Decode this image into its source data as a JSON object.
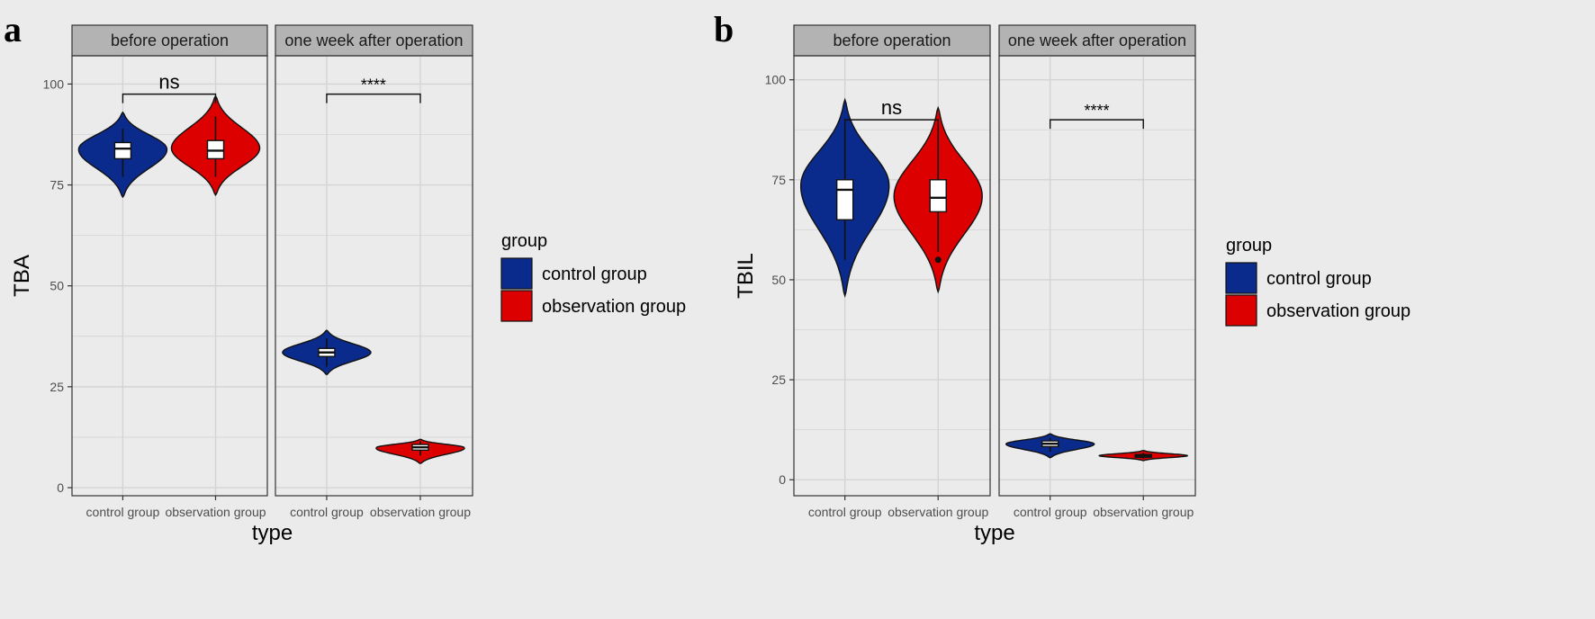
{
  "colors": {
    "control": "#0a2a8c",
    "observation": "#dd0000",
    "background": "#ebebeb",
    "panel": "#ebebeb",
    "strip": "#b3b3b3",
    "grid": "#d4d4d4"
  },
  "chart_data": [
    {
      "type": "violin",
      "panel_label": "a",
      "ylabel": "TBA",
      "xlabel": "type",
      "ylim": [
        -2,
        107
      ],
      "yticks": [
        0,
        25,
        50,
        75,
        100
      ],
      "categories": [
        "control group",
        "observation group"
      ],
      "legend": {
        "title": "group",
        "entries": [
          "control group",
          "observation group"
        ],
        "placement": "right"
      },
      "facets": [
        {
          "title": "before operation",
          "significance": "ns",
          "bracket_y": 97.5,
          "groups": [
            {
              "name": "control group",
              "min": 72,
              "max": 93,
              "mode": 84,
              "q1": 81.5,
              "median": 84,
              "q3": 85.5,
              "whisker_low": 77,
              "whisker_high": 89
            },
            {
              "name": "observation group",
              "min": 72.5,
              "max": 97,
              "mode": 84,
              "q1": 81.5,
              "median": 83.5,
              "q3": 86,
              "whisker_low": 77,
              "whisker_high": 92
            }
          ]
        },
        {
          "title": "one week after operation",
          "significance": "****",
          "bracket_y": 97.5,
          "groups": [
            {
              "name": "control group",
              "min": 28,
              "max": 39,
              "mode": 33.5,
              "q1": 32.5,
              "median": 33.5,
              "q3": 34.5,
              "whisker_low": 30,
              "whisker_high": 37
            },
            {
              "name": "observation group",
              "min": 6,
              "max": 12,
              "mode": 10,
              "q1": 9.3,
              "median": 10,
              "q3": 10.7,
              "whisker_low": 8,
              "whisker_high": 11.5
            }
          ]
        }
      ]
    },
    {
      "type": "violin",
      "panel_label": "b",
      "ylabel": "TBIL",
      "xlabel": "type",
      "ylim": [
        -4,
        106
      ],
      "yticks": [
        0,
        25,
        50,
        75,
        100
      ],
      "categories": [
        "control group",
        "observation group"
      ],
      "legend": {
        "title": "group",
        "entries": [
          "control group",
          "observation group"
        ],
        "placement": "right"
      },
      "facets": [
        {
          "title": "before operation",
          "significance": "ns",
          "bracket_y": 90,
          "groups": [
            {
              "name": "control group",
              "min": 46,
              "max": 95,
              "mode": 74,
              "q1": 65,
              "median": 72.5,
              "q3": 75,
              "whisker_low": 55,
              "whisker_high": 88
            },
            {
              "name": "observation group",
              "min": 47,
              "max": 93,
              "mode": 71,
              "q1": 67,
              "median": 70.5,
              "q3": 75,
              "whisker_low": 57,
              "whisker_high": 88,
              "outliers": [
                55
              ]
            }
          ]
        },
        {
          "title": "one week after operation",
          "significance": "****",
          "bracket_y": 90,
          "groups": [
            {
              "name": "control group",
              "min": 5.5,
              "max": 11.5,
              "mode": 9,
              "q1": 8.3,
              "median": 9,
              "q3": 9.7,
              "whisker_low": 7,
              "whisker_high": 10.5
            },
            {
              "name": "observation group",
              "min": 4.8,
              "max": 7.3,
              "mode": 6,
              "q1": 5.7,
              "median": 6,
              "q3": 6.3,
              "whisker_low": 5.2,
              "whisker_high": 6.8
            }
          ]
        }
      ]
    }
  ]
}
